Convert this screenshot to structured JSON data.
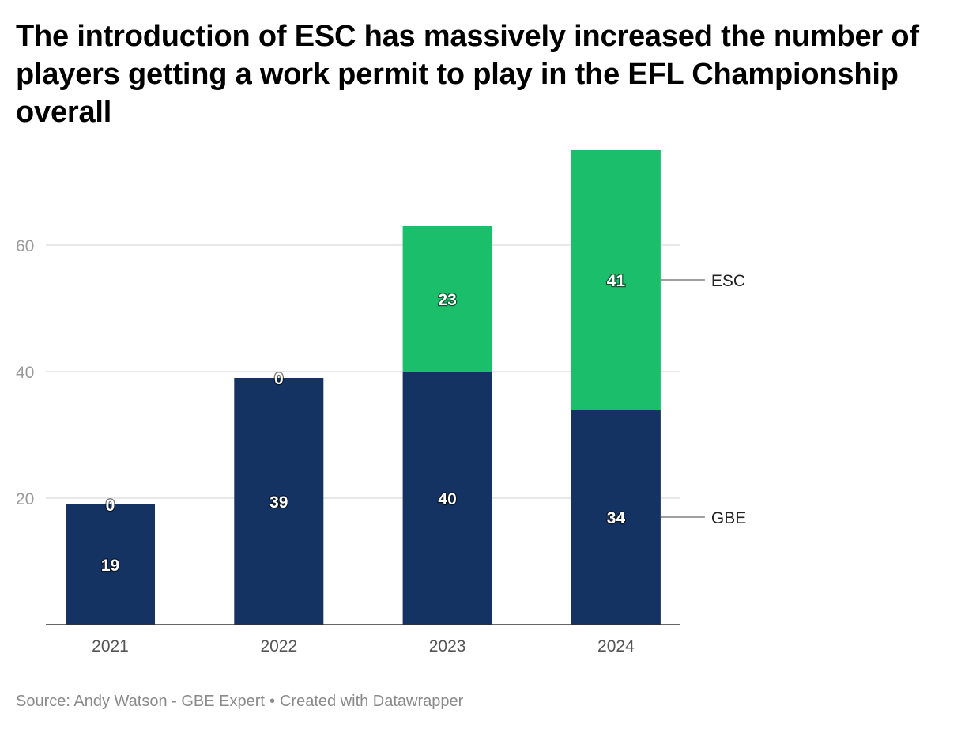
{
  "title": "The introduction of ESC has massively increased the number of players getting a work permit to play in the EFL Championship overall",
  "source": {
    "text": "Source: Andy Watson - GBE Expert",
    "separator": "•",
    "credit": "Created with Datawrapper"
  },
  "chart_data": {
    "type": "bar",
    "stacked": true,
    "title": "The introduction of ESC has massively increased the number of players getting a work permit to play in the EFL Championship overall",
    "categories": [
      "2021",
      "2022",
      "2023",
      "2024"
    ],
    "series": [
      {
        "name": "GBE",
        "values": [
          19,
          39,
          40,
          34
        ],
        "color": "#143363"
      },
      {
        "name": "ESC",
        "values": [
          0,
          0,
          23,
          41
        ],
        "color": "#1bbf6b"
      }
    ],
    "ylim": [
      0,
      75
    ],
    "yticks": [
      20,
      40,
      60
    ],
    "xlabel": "",
    "ylabel": "",
    "grid": true,
    "legend": "direct labels at right of last bar"
  }
}
